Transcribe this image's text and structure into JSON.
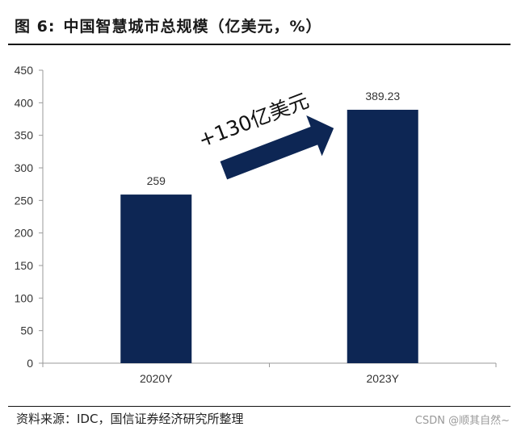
{
  "title": {
    "label": "图 6:",
    "text": "中国智慧城市总规模（亿美元，%）"
  },
  "source": "资料来源：IDC，国信证券经济研究所整理",
  "watermark": "CSDN @顺其自然~",
  "annotation": "+130亿美元",
  "colors": {
    "bar": "#0d2654",
    "arrow": "#0d2654",
    "axis": "#999999"
  },
  "chart_data": {
    "type": "bar",
    "categories": [
      "2020Y",
      "2023Y"
    ],
    "values": [
      259,
      389.23
    ],
    "value_labels": [
      "259",
      "389.23"
    ],
    "ylim": [
      0,
      450
    ],
    "yticks": [
      0,
      50,
      100,
      150,
      200,
      250,
      300,
      350,
      400,
      450
    ],
    "grid": false,
    "legend": "none",
    "title": "中国智慧城市总规模（亿美元，%）",
    "annotations": [
      "+130亿美元"
    ]
  }
}
